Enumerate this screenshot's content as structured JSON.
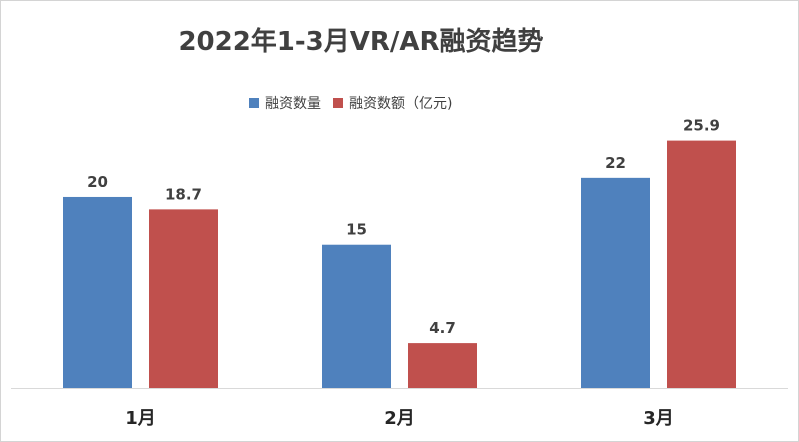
{
  "chart_data": {
    "type": "bar",
    "title": "2022年1-3月VR/AR融资趋势",
    "categories": [
      "1月",
      "2月",
      "3月"
    ],
    "series": [
      {
        "name": "融资数量",
        "values": [
          20,
          15,
          22
        ],
        "labels": [
          "20",
          "15",
          "22"
        ],
        "color": "#4F81BD"
      },
      {
        "name": "融资数额（亿元)",
        "values": [
          18.7,
          4.7,
          25.9
        ],
        "labels": [
          "18.7",
          "4.7",
          "25.9"
        ],
        "color": "#C0504D"
      }
    ],
    "xlabel": "",
    "ylabel": "",
    "ylim": [
      0,
      26.8
    ],
    "grid": false,
    "legend_position": "top"
  }
}
